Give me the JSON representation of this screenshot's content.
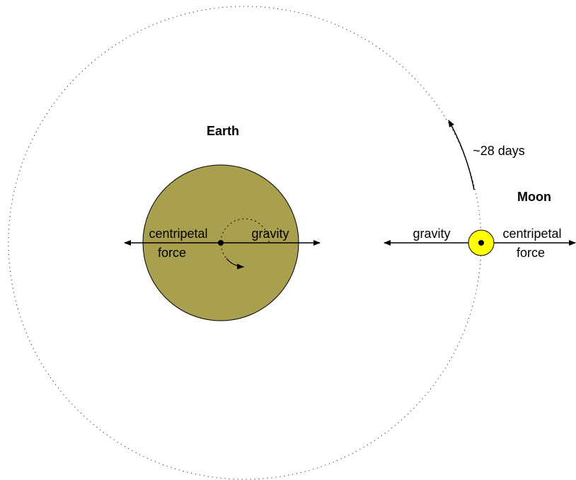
{
  "earth": {
    "label": "Earth",
    "left_force": [
      "centripetal",
      "force"
    ],
    "right_force": "gravity"
  },
  "moon": {
    "label": "Moon",
    "left_force": "gravity",
    "right_force": [
      "centripetal",
      "force"
    ]
  },
  "orbit_period": "~28 days"
}
